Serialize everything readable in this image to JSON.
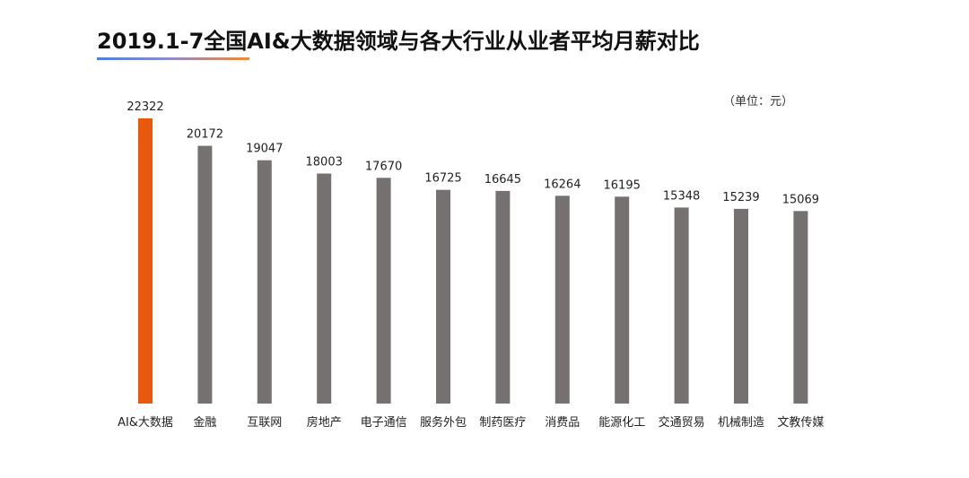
{
  "chart_data": {
    "type": "bar",
    "title": "2019.1-7全国AI&大数据领域与各大行业从业者平均月薪对比",
    "unit_label": "（单位：元）",
    "categories": [
      "AI&大数据",
      "金融",
      "互联网",
      "房地产",
      "电子通信",
      "服务外包",
      "制药医疗",
      "消费品",
      "能源化工",
      "交通贸易",
      "机械制造",
      "文教传媒"
    ],
    "values": [
      22322,
      20172,
      19047,
      18003,
      17670,
      16725,
      16645,
      16264,
      16195,
      15348,
      15239,
      15069
    ],
    "ylim": [
      0,
      23000
    ],
    "grid": false,
    "legend": "none",
    "colors": {
      "highlight": "#e8590c",
      "bar": "#767171"
    },
    "highlight_index": 0
  }
}
